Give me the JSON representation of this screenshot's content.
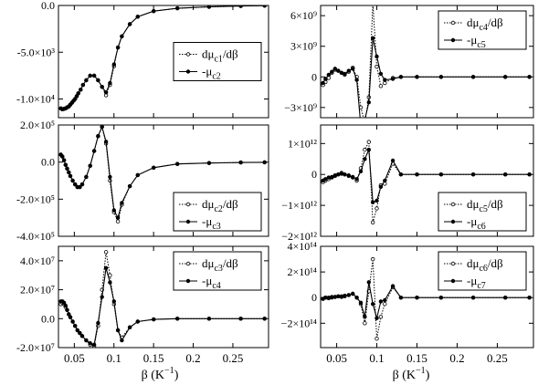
{
  "figure": {
    "x_axis_label_main": "β (K",
    "x_axis_label_exp": "−1",
    "x_axis_label_close": ")"
  },
  "chart_data": [
    {
      "type": "line",
      "panel": "top-left",
      "xlim": [
        0.03,
        0.295
      ],
      "ylim": [
        -12000,
        0
      ],
      "yticks": [
        0,
        -5000,
        -10000
      ],
      "ytick_labels": [
        "0.0",
        "-5.0×10³",
        "-1.0×10⁴"
      ],
      "xticks": [
        0.05,
        0.1,
        0.15,
        0.2,
        0.25
      ],
      "xtick_labels": [],
      "legend_position": "center-right",
      "series": [
        {
          "name_main": "dμ",
          "name_sub": "c1",
          "name_suffix": "/dβ",
          "style": "dotted-open-circles",
          "x": [
            0.033,
            0.035,
            0.037,
            0.039,
            0.041,
            0.043,
            0.045,
            0.047,
            0.049,
            0.051,
            0.053,
            0.055,
            0.058,
            0.061,
            0.065,
            0.07,
            0.075,
            0.08,
            0.085,
            0.09,
            0.095,
            0.1,
            0.105,
            0.11,
            0.12,
            0.13,
            0.15,
            0.18,
            0.22,
            0.26,
            0.29
          ],
          "y": [
            -11000,
            -11100,
            -11050,
            -11000,
            -10900,
            -10800,
            -10600,
            -10400,
            -10200,
            -10000,
            -9700,
            -9400,
            -9000,
            -8500,
            -8000,
            -7500,
            -7500,
            -8000,
            -8700,
            -9600,
            -8500,
            -6500,
            -4500,
            -3300,
            -2000,
            -1200,
            -600,
            -300,
            -150,
            -60,
            -20
          ]
        },
        {
          "name_main": "-μ",
          "name_sub": "c2",
          "name_suffix": "",
          "style": "solid-filled-circles",
          "x": [
            0.033,
            0.035,
            0.037,
            0.039,
            0.041,
            0.043,
            0.045,
            0.047,
            0.049,
            0.051,
            0.053,
            0.055,
            0.058,
            0.061,
            0.065,
            0.07,
            0.075,
            0.08,
            0.085,
            0.09,
            0.095,
            0.1,
            0.105,
            0.11,
            0.12,
            0.13,
            0.15,
            0.18,
            0.22,
            0.26,
            0.29
          ],
          "y": [
            -11000,
            -11100,
            -11050,
            -11000,
            -10900,
            -10800,
            -10600,
            -10400,
            -10200,
            -10000,
            -9700,
            -9400,
            -9000,
            -8500,
            -8000,
            -7500,
            -7500,
            -8000,
            -8700,
            -9300,
            -8300,
            -6300,
            -4500,
            -3300,
            -2000,
            -1200,
            -600,
            -300,
            -150,
            -60,
            -20
          ]
        }
      ]
    },
    {
      "type": "line",
      "panel": "top-right",
      "xlim": [
        0.03,
        0.295
      ],
      "ylim": [
        -4000000000,
        7000000000
      ],
      "yticks": [
        6000000000,
        3000000000,
        0,
        -3000000000
      ],
      "ytick_labels": [
        "6×10⁹",
        "3×10⁹",
        "0",
        "−3×10⁹"
      ],
      "xticks": [
        0.05,
        0.1,
        0.15,
        0.2,
        0.25
      ],
      "xtick_labels": [],
      "legend_position": "top-right",
      "series": [
        {
          "name_main": "dμ",
          "name_sub": "c4",
          "name_suffix": "/dβ",
          "style": "dotted-open-circles",
          "x": [
            0.033,
            0.036,
            0.04,
            0.044,
            0.048,
            0.052,
            0.056,
            0.06,
            0.065,
            0.07,
            0.075,
            0.08,
            0.085,
            0.09,
            0.095,
            0.1,
            0.105,
            0.11,
            0.12,
            0.13,
            0.15,
            0.18,
            0.22,
            0.26,
            0.29
          ],
          "y": [
            -800000000,
            -500000000,
            -100000000,
            400000000,
            700000000,
            600000000,
            400000000,
            200000000,
            500000000,
            900000000,
            0,
            -3000000000,
            -4500000000,
            -2000000000,
            7200000000,
            1000000000,
            -900000000,
            -600000000,
            -100000000,
            0,
            0,
            0,
            0,
            0,
            0
          ]
        },
        {
          "name_main": "-μ",
          "name_sub": "c5",
          "name_suffix": "",
          "style": "solid-filled-circles",
          "x": [
            0.033,
            0.036,
            0.04,
            0.044,
            0.048,
            0.052,
            0.056,
            0.06,
            0.065,
            0.07,
            0.075,
            0.08,
            0.085,
            0.09,
            0.095,
            0.1,
            0.105,
            0.11,
            0.12,
            0.13,
            0.15,
            0.18,
            0.22,
            0.26,
            0.29
          ],
          "y": [
            -600000000,
            -200000000,
            200000000,
            500000000,
            800000000,
            600000000,
            400000000,
            300000000,
            600000000,
            800000000,
            -300000000,
            -4800000000,
            -4200000000,
            -2500000000,
            3800000000,
            2000000000,
            300000000,
            -300000000,
            -200000000,
            0,
            0,
            0,
            0,
            0,
            0
          ]
        }
      ]
    },
    {
      "type": "line",
      "panel": "middle-left",
      "xlim": [
        0.03,
        0.295
      ],
      "ylim": [
        -400000,
        200000
      ],
      "yticks": [
        200000,
        0,
        -200000,
        -400000
      ],
      "ytick_labels": [
        "2.0×10⁵",
        "0.0",
        "-2.0×10⁵",
        "-4.0×10⁵"
      ],
      "xticks": [
        0.05,
        0.1,
        0.15,
        0.2,
        0.25
      ],
      "xtick_labels": [],
      "legend_position": "bottom-right",
      "series": [
        {
          "name_main": "dμ",
          "name_sub": "c2",
          "name_suffix": "/dβ",
          "style": "dotted-open-circles",
          "x": [
            0.033,
            0.035,
            0.037,
            0.039,
            0.041,
            0.043,
            0.045,
            0.048,
            0.051,
            0.054,
            0.057,
            0.06,
            0.065,
            0.07,
            0.075,
            0.08,
            0.085,
            0.09,
            0.095,
            0.1,
            0.105,
            0.11,
            0.12,
            0.13,
            0.15,
            0.18,
            0.22,
            0.26,
            0.29
          ],
          "y": [
            40000,
            30000,
            10000,
            -15000,
            -35000,
            -55000,
            -75000,
            -100000,
            -120000,
            -135000,
            -135000,
            -120000,
            -80000,
            -20000,
            60000,
            140000,
            190000,
            100000,
            -100000,
            -270000,
            -320000,
            -230000,
            -130000,
            -70000,
            -30000,
            -10000,
            -5000,
            -2000,
            -1000
          ]
        },
        {
          "name_main": "-μ",
          "name_sub": "c3",
          "name_suffix": "",
          "style": "solid-filled-circles",
          "x": [
            0.033,
            0.035,
            0.037,
            0.039,
            0.041,
            0.043,
            0.045,
            0.048,
            0.051,
            0.054,
            0.057,
            0.06,
            0.065,
            0.07,
            0.075,
            0.08,
            0.085,
            0.09,
            0.095,
            0.1,
            0.105,
            0.11,
            0.12,
            0.13,
            0.15,
            0.18,
            0.22,
            0.26,
            0.29
          ],
          "y": [
            40000,
            30000,
            10000,
            -15000,
            -35000,
            -55000,
            -75000,
            -100000,
            -120000,
            -135000,
            -135000,
            -120000,
            -80000,
            -20000,
            60000,
            140000,
            190000,
            110000,
            -80000,
            -260000,
            -300000,
            -220000,
            -130000,
            -70000,
            -30000,
            -10000,
            -5000,
            -2000,
            -1000
          ]
        }
      ]
    },
    {
      "type": "line",
      "panel": "middle-right",
      "xlim": [
        0.03,
        0.295
      ],
      "ylim": [
        -2000000000000,
        1600000000000
      ],
      "yticks": [
        1000000000000,
        0,
        -1000000000000,
        -2000000000000
      ],
      "ytick_labels": [
        "1×10¹²",
        "0",
        "−1×10¹²",
        "−2×10¹²"
      ],
      "xticks": [
        0.05,
        0.1,
        0.15,
        0.2,
        0.25
      ],
      "xtick_labels": [],
      "legend_position": "bottom-right",
      "series": [
        {
          "name_main": "dμ",
          "name_sub": "c5",
          "name_suffix": "/dβ",
          "style": "dotted-open-circles",
          "x": [
            0.033,
            0.036,
            0.04,
            0.044,
            0.048,
            0.052,
            0.056,
            0.06,
            0.065,
            0.07,
            0.075,
            0.08,
            0.085,
            0.09,
            0.095,
            0.1,
            0.105,
            0.11,
            0.12,
            0.13,
            0.15,
            0.18,
            0.22,
            0.26,
            0.29
          ],
          "y": [
            -250000000000,
            -200000000000,
            -150000000000,
            -100000000000,
            -50000000000,
            0,
            50000000000,
            0,
            -50000000000,
            -100000000000,
            -200000000000,
            200000000000,
            800000000000,
            1050000000000,
            -1550000000000,
            -1100000000000,
            -350000000000,
            -300000000000,
            350000000000,
            0,
            0,
            0,
            0,
            0,
            0
          ]
        },
        {
          "name_main": "-μ",
          "name_sub": "c6",
          "name_suffix": "",
          "style": "solid-filled-circles",
          "x": [
            0.033,
            0.036,
            0.04,
            0.044,
            0.048,
            0.052,
            0.056,
            0.06,
            0.065,
            0.07,
            0.075,
            0.08,
            0.085,
            0.09,
            0.095,
            0.1,
            0.105,
            0.11,
            0.12,
            0.13,
            0.15,
            0.18,
            0.22,
            0.26,
            0.29
          ],
          "y": [
            -200000000000,
            -150000000000,
            -100000000000,
            -80000000000,
            -30000000000,
            0,
            20000000000,
            0,
            -30000000000,
            -80000000000,
            -150000000000,
            100000000000,
            500000000000,
            800000000000,
            -900000000000,
            -850000000000,
            -400000000000,
            -200000000000,
            450000000000,
            0,
            0,
            0,
            0,
            0,
            0
          ]
        }
      ]
    },
    {
      "type": "line",
      "panel": "bottom-left",
      "xlim": [
        0.03,
        0.295
      ],
      "ylim": [
        -20000000,
        50000000
      ],
      "yticks": [
        40000000,
        20000000,
        0,
        -20000000
      ],
      "ytick_labels": [
        "4.0×10⁷",
        "2.0×10⁷",
        "0.0",
        "-2.0×10⁷"
      ],
      "xticks": [
        0.05,
        0.1,
        0.15,
        0.2,
        0.25
      ],
      "xtick_labels": [
        "0.05",
        "0.1",
        "0.15",
        "0.2",
        "0.25"
      ],
      "legend_position": "top-right",
      "series": [
        {
          "name_main": "dμ",
          "name_sub": "c3",
          "name_suffix": "/dβ",
          "style": "dotted-open-circles",
          "x": [
            0.033,
            0.035,
            0.037,
            0.039,
            0.041,
            0.043,
            0.045,
            0.048,
            0.051,
            0.054,
            0.057,
            0.06,
            0.065,
            0.07,
            0.075,
            0.08,
            0.085,
            0.09,
            0.095,
            0.1,
            0.105,
            0.11,
            0.12,
            0.13,
            0.15,
            0.18,
            0.22,
            0.26,
            0.29
          ],
          "y": [
            10000000,
            11000000,
            10000000,
            8000000,
            6000000,
            3000000,
            1000000,
            -2000000,
            -5000000,
            -8000000,
            -10000000,
            -12000000,
            -15000000,
            -18000000,
            -19000000,
            -5000000,
            20000000,
            46000000,
            30000000,
            10000000,
            -8000000,
            -13000000,
            -6000000,
            -2000000,
            -500000,
            0,
            0,
            0,
            0
          ]
        },
        {
          "name_main": "-μ",
          "name_sub": "c4",
          "name_suffix": "",
          "style": "solid-filled-circles",
          "x": [
            0.033,
            0.035,
            0.037,
            0.039,
            0.041,
            0.043,
            0.045,
            0.048,
            0.051,
            0.054,
            0.057,
            0.06,
            0.065,
            0.07,
            0.075,
            0.08,
            0.085,
            0.09,
            0.095,
            0.1,
            0.105,
            0.11,
            0.12,
            0.13,
            0.15,
            0.18,
            0.22,
            0.26,
            0.29
          ],
          "y": [
            12000000,
            12000000,
            11000000,
            9000000,
            6000000,
            3000000,
            1000000,
            -2000000,
            -5000000,
            -8000000,
            -10000000,
            -12000000,
            -15000000,
            -17000000,
            -18000000,
            -3000000,
            15000000,
            35000000,
            25000000,
            12000000,
            -8000000,
            -15000000,
            -6000000,
            -2000000,
            -500000,
            0,
            0,
            0,
            0
          ]
        }
      ]
    },
    {
      "type": "line",
      "panel": "bottom-right",
      "xlim": [
        0.03,
        0.295
      ],
      "ylim": [
        -390000000000000,
        400000000000000
      ],
      "yticks": [
        400000000000000,
        200000000000000,
        0,
        -200000000000000
      ],
      "ytick_labels": [
        "4×10¹⁴",
        "2×10¹⁴",
        "0",
        "−2×10¹⁴"
      ],
      "xticks": [
        0.05,
        0.1,
        0.15,
        0.2,
        0.25
      ],
      "xtick_labels": [
        "0.05",
        "0.1",
        "0.15",
        "0.2",
        "0.25"
      ],
      "legend_position": "top-right",
      "series": [
        {
          "name_main": "dμ",
          "name_sub": "c6",
          "name_suffix": "/dβ",
          "style": "dotted-open-circles",
          "x": [
            0.033,
            0.036,
            0.04,
            0.044,
            0.048,
            0.052,
            0.056,
            0.06,
            0.065,
            0.07,
            0.075,
            0.08,
            0.085,
            0.09,
            0.095,
            0.1,
            0.105,
            0.11,
            0.12,
            0.13,
            0.15,
            0.18,
            0.22,
            0.26,
            0.29
          ],
          "y": [
            -10000000000000,
            0,
            -5000000000000,
            0,
            5000000000000,
            10000000000000,
            5000000000000,
            10000000000000,
            20000000000000,
            30000000000000,
            0,
            -50000000000000,
            -200000000000000,
            50000000000000,
            300000000000000,
            -320000000000000,
            -150000000000000,
            -50000000000000,
            80000000000000,
            0,
            0,
            0,
            0,
            0,
            0
          ]
        },
        {
          "name_main": "-μ",
          "name_sub": "c7",
          "name_suffix": "",
          "style": "solid-filled-circles",
          "x": [
            0.033,
            0.036,
            0.04,
            0.044,
            0.048,
            0.052,
            0.056,
            0.06,
            0.065,
            0.07,
            0.075,
            0.08,
            0.085,
            0.09,
            0.095,
            0.1,
            0.105,
            0.11,
            0.12,
            0.13,
            0.15,
            0.18,
            0.22,
            0.26,
            0.29
          ],
          "y": [
            -10000000000000,
            0,
            0,
            5000000000000,
            5000000000000,
            10000000000000,
            10000000000000,
            15000000000000,
            20000000000000,
            30000000000000,
            0,
            -40000000000000,
            -150000000000000,
            120000000000000,
            -50000000000000,
            -160000000000000,
            -30000000000000,
            -20000000000000,
            90000000000000,
            0,
            0,
            0,
            0,
            0,
            0
          ]
        }
      ]
    }
  ]
}
